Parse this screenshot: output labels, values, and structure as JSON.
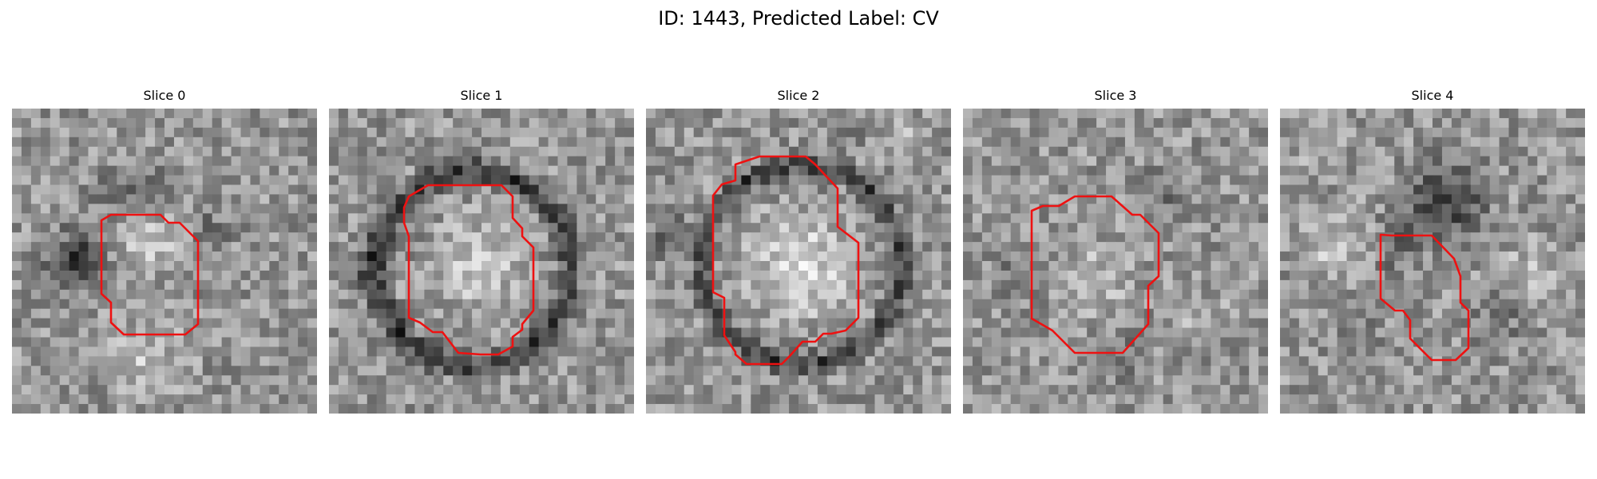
{
  "figure": {
    "title": "ID: 1443, Predicted Label: CV"
  },
  "slices": [
    {
      "label": "Slice 0"
    },
    {
      "label": "Slice 1"
    },
    {
      "label": "Slice 2"
    },
    {
      "label": "Slice 3"
    },
    {
      "label": "Slice 4"
    }
  ],
  "colors": {
    "contour": "#ee1111",
    "background": "#ffffff"
  }
}
